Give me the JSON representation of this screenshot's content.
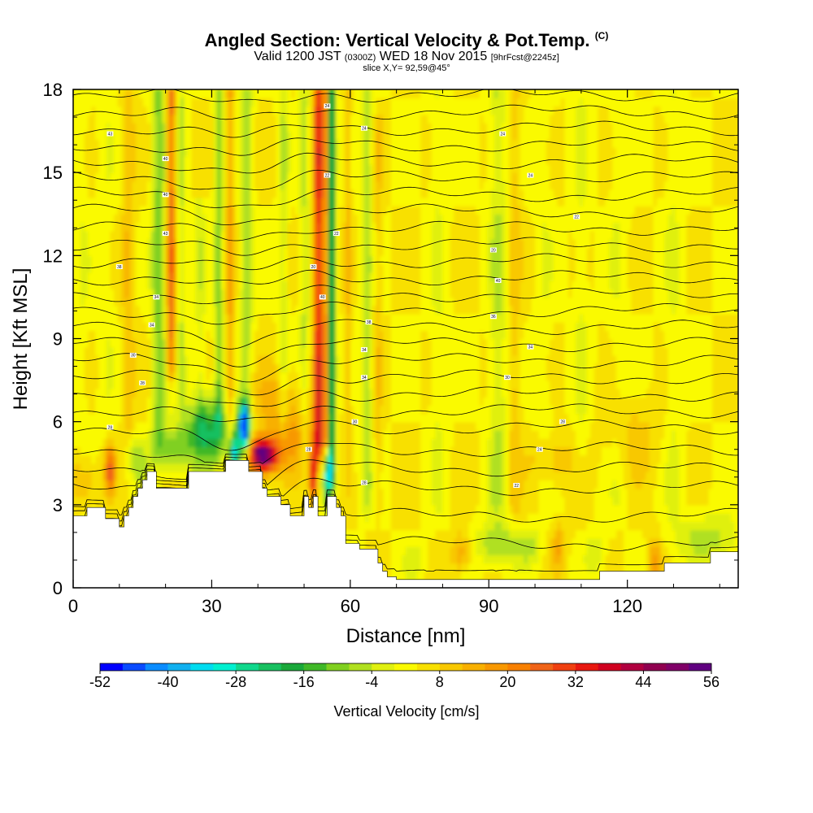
{
  "header": {
    "title": "Angled Section: Vertical Velocity & Pot.Temp.",
    "title_mark": "(C)",
    "valid_prefix": "Valid 1200 JST",
    "valid_utc": "(0300Z)",
    "valid_date": "WED 18 Nov 2015",
    "forecast": "[9hrFcst@2245z]",
    "slice": "slice X,Y= 92,59@45°"
  },
  "chart_data": {
    "type": "heatmap",
    "title": "Angled Section: Vertical Velocity & Pot.Temp.",
    "xlabel": "Distance [nm]",
    "ylabel": "Height [Kft MSL]",
    "xlim": [
      0,
      144
    ],
    "ylim": [
      0,
      18
    ],
    "xticks": [
      "0",
      "30",
      "60",
      "90",
      "120"
    ],
    "xtick_values": [
      0,
      30,
      60,
      90,
      120
    ],
    "yticks": [
      "0",
      "3",
      "6",
      "9",
      "12",
      "15",
      "18"
    ],
    "ytick_values": [
      0,
      3,
      6,
      9,
      12,
      15,
      18
    ],
    "colorbar": {
      "label": "Vertical Velocity [cm/s]",
      "min": -52,
      "max": 56,
      "step": 4,
      "tick_labels": [
        "-52",
        "-40",
        "-28",
        "-16",
        "-4",
        "8",
        "20",
        "32",
        "44",
        "56"
      ],
      "tick_values": [
        -52,
        -40,
        -28,
        -16,
        -4,
        8,
        20,
        32,
        44,
        56
      ],
      "colors": [
        "#0000ff",
        "#0a4bff",
        "#0a8cff",
        "#10b0f0",
        "#00dcf0",
        "#00f0d0",
        "#10d88c",
        "#18c060",
        "#1aa83a",
        "#40b828",
        "#80d020",
        "#b0e020",
        "#e0f010",
        "#fafa00",
        "#f8e000",
        "#f8c800",
        "#f8b000",
        "#f89800",
        "#f88000",
        "#f06418",
        "#f04010",
        "#e81810",
        "#d00020",
        "#b00040",
        "#900050",
        "#800068",
        "#600080"
      ]
    },
    "isentrope_label_values": [
      "43",
      "40",
      "40",
      "43",
      "38",
      "34",
      "34",
      "30",
      "28",
      "28",
      "24",
      "24",
      "22",
      "22",
      "20",
      "40",
      "38",
      "34",
      "34",
      "30",
      "28",
      "28",
      "24",
      "24",
      "22",
      "20",
      "40",
      "36",
      "34",
      "30",
      "28",
      "24",
      "22",
      "20"
    ],
    "features": [
      {
        "name": "updraft core",
        "distance_nm": 41,
        "height_kft": 4.7,
        "velocity_cm_s": 56
      },
      {
        "name": "downdraft core",
        "distance_nm": 37,
        "height_kft": 5.8,
        "velocity_cm_s": -52
      },
      {
        "name": "downdraft column",
        "distance_nm": 19,
        "height_kft": 12,
        "velocity_cm_s": -16
      },
      {
        "name": "downdraft column",
        "distance_nm": 56,
        "height_kft": 12,
        "velocity_cm_s": -28
      },
      {
        "name": "updraft column",
        "distance_nm": 53,
        "height_kft": 14,
        "velocity_cm_s": 32
      },
      {
        "name": "updraft column",
        "distance_nm": 21,
        "height_kft": 14,
        "velocity_cm_s": 24
      },
      {
        "name": "low-level sink",
        "distance_nm": 92,
        "height_kft": 1.8,
        "velocity_cm_s": -12
      }
    ],
    "terrain_kft": [
      [
        0,
        2.6
      ],
      [
        3,
        2.6
      ],
      [
        3,
        2.9
      ],
      [
        7,
        2.9
      ],
      [
        7,
        2.5
      ],
      [
        10,
        2.5
      ],
      [
        10,
        2.2
      ],
      [
        11,
        2.2
      ],
      [
        11,
        2.6
      ],
      [
        12,
        2.6
      ],
      [
        12,
        2.9
      ],
      [
        13,
        2.9
      ],
      [
        13,
        3.3
      ],
      [
        14,
        3.3
      ],
      [
        14,
        3.6
      ],
      [
        15,
        3.6
      ],
      [
        15,
        3.9
      ],
      [
        16,
        3.9
      ],
      [
        16,
        4.2
      ],
      [
        18,
        4.2
      ],
      [
        18,
        3.6
      ],
      [
        25,
        3.6
      ],
      [
        25,
        4.2
      ],
      [
        33,
        4.2
      ],
      [
        33,
        4.6
      ],
      [
        38,
        4.6
      ],
      [
        38,
        4.2
      ],
      [
        41,
        4.2
      ],
      [
        41,
        3.6
      ],
      [
        42,
        3.6
      ],
      [
        42,
        3.3
      ],
      [
        45,
        3.3
      ],
      [
        45,
        3.0
      ],
      [
        47,
        3.0
      ],
      [
        47,
        2.6
      ],
      [
        50,
        2.6
      ],
      [
        50,
        3.3
      ],
      [
        51,
        3.3
      ],
      [
        51,
        2.9
      ],
      [
        52,
        2.9
      ],
      [
        52,
        3.3
      ],
      [
        53,
        3.3
      ],
      [
        53,
        2.6
      ],
      [
        55,
        2.6
      ],
      [
        55,
        3.3
      ],
      [
        57,
        3.3
      ],
      [
        57,
        2.9
      ],
      [
        58,
        2.9
      ],
      [
        58,
        2.6
      ],
      [
        59,
        2.6
      ],
      [
        59,
        1.6
      ],
      [
        62,
        1.6
      ],
      [
        62,
        1.4
      ],
      [
        66,
        1.4
      ],
      [
        66,
        0.9
      ],
      [
        67,
        0.9
      ],
      [
        67,
        0.6
      ],
      [
        68,
        0.6
      ],
      [
        68,
        0.4
      ],
      [
        70,
        0.4
      ],
      [
        70,
        0.3
      ],
      [
        114,
        0.3
      ],
      [
        114,
        0.6
      ],
      [
        128,
        0.6
      ],
      [
        128,
        0.9
      ],
      [
        138,
        0.9
      ],
      [
        138,
        1.3
      ],
      [
        144,
        1.3
      ]
    ]
  }
}
